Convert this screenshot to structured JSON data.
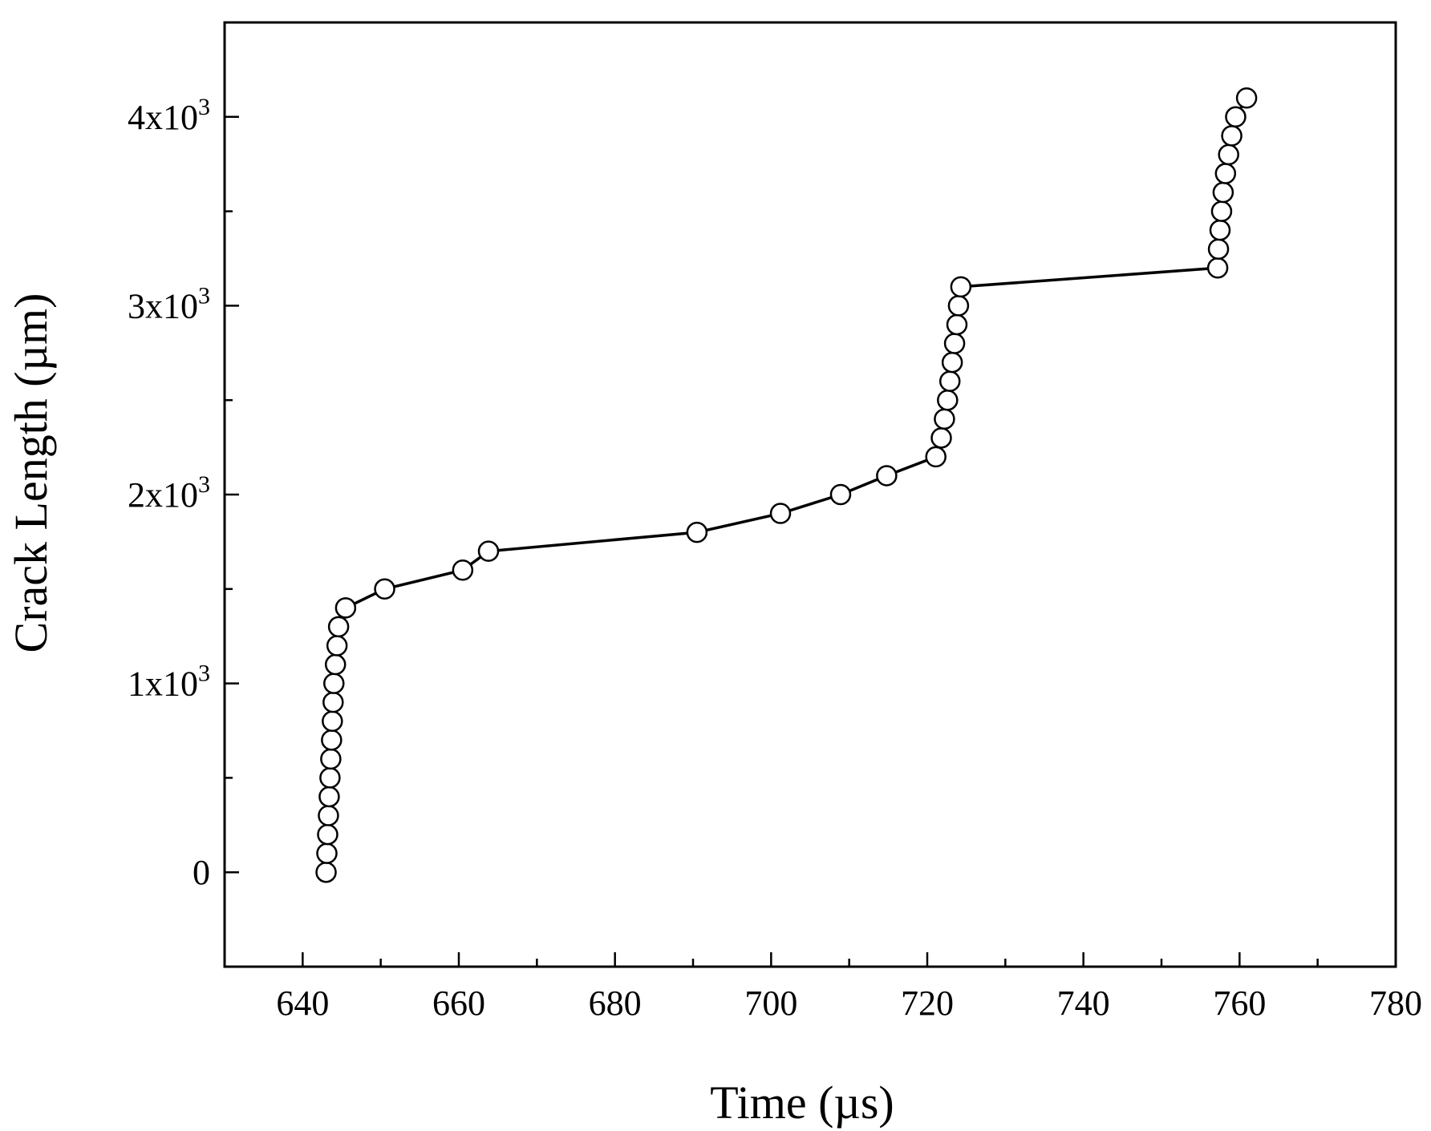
{
  "chart_data": {
    "type": "line",
    "title": "",
    "xlabel": "Time (µs)",
    "ylabel": "Crack Length (µm)",
    "xlim": [
      630,
      780
    ],
    "ylim": [
      -500,
      4500
    ],
    "x_ticks": [
      640,
      660,
      680,
      700,
      720,
      740,
      760,
      780
    ],
    "x_tick_labels": [
      "640",
      "660",
      "680",
      "700",
      "720",
      "740",
      "760",
      "780"
    ],
    "y_ticks": [
      0,
      1000,
      2000,
      3000,
      4000
    ],
    "y_tick_labels": [
      {
        "base": "0",
        "exp": ""
      },
      {
        "base": "1x10",
        "exp": "3"
      },
      {
        "base": "2x10",
        "exp": "3"
      },
      {
        "base": "3x10",
        "exp": "3"
      },
      {
        "base": "4x10",
        "exp": "3"
      }
    ],
    "grid": false,
    "marker": "open-circle",
    "line_color": "#000000",
    "marker_fill": "#ffffff",
    "series": [
      {
        "x": [
          643.0,
          643.1,
          643.2,
          643.3,
          643.4,
          643.5,
          643.6,
          643.7,
          643.8,
          643.9,
          644.0,
          644.2,
          644.4,
          644.6,
          645.5,
          650.5,
          660.5,
          663.8,
          690.5,
          701.2,
          708.9,
          714.8,
          721.1,
          721.8,
          722.2,
          722.6,
          722.9,
          723.2,
          723.5,
          723.8,
          724.0,
          724.3,
          757.2,
          757.3,
          757.5,
          757.7,
          757.9,
          758.2,
          758.6,
          759.0,
          759.5,
          760.9
        ],
        "y": [
          0,
          100,
          200,
          300,
          400,
          500,
          600,
          700,
          800,
          900,
          1000,
          1100,
          1200,
          1300,
          1400,
          1500,
          1600,
          1700,
          1800,
          1900,
          2000,
          2100,
          2200,
          2300,
          2400,
          2500,
          2600,
          2700,
          2800,
          2900,
          3000,
          3100,
          3200,
          3300,
          3400,
          3500,
          3600,
          3700,
          3800,
          3900,
          4000,
          4100
        ]
      }
    ]
  }
}
